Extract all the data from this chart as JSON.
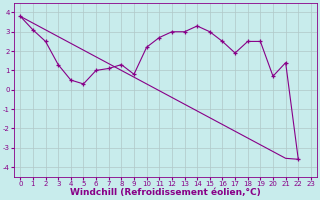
{
  "xlabel": "Windchill (Refroidissement éolien,°C)",
  "background_color": "#c8ecec",
  "line_color": "#880088",
  "x_values": [
    0,
    1,
    2,
    3,
    4,
    5,
    6,
    7,
    8,
    9,
    10,
    11,
    12,
    13,
    14,
    15,
    16,
    17,
    18,
    19,
    20,
    21,
    22
  ],
  "line1_y": [
    3.8,
    3.1,
    2.5,
    1.3,
    0.5,
    0.3,
    1.0,
    1.1,
    1.3,
    0.8,
    2.2,
    2.7,
    3.0,
    3.0,
    3.3,
    3.0,
    2.5,
    1.9,
    2.5,
    2.5,
    0.7,
    1.4,
    -3.6
  ],
  "line2_y": [
    3.8,
    3.45,
    3.1,
    2.75,
    2.4,
    2.05,
    1.7,
    1.35,
    1.0,
    0.65,
    0.3,
    -0.05,
    -0.4,
    -0.75,
    -1.1,
    -1.45,
    -1.8,
    -2.15,
    -2.5,
    -2.85,
    -3.2,
    -3.55,
    -3.6
  ],
  "ylim": [
    -4.5,
    4.5
  ],
  "xlim": [
    -0.5,
    23.5
  ],
  "yticks": [
    -4,
    -3,
    -2,
    -1,
    0,
    1,
    2,
    3,
    4
  ],
  "xticks": [
    0,
    1,
    2,
    3,
    4,
    5,
    6,
    7,
    8,
    9,
    10,
    11,
    12,
    13,
    14,
    15,
    16,
    17,
    18,
    19,
    20,
    21,
    22,
    23
  ],
  "tick_fontsize": 5.0,
  "xlabel_fontsize": 6.5,
  "grid_color": "#b0c8c8"
}
